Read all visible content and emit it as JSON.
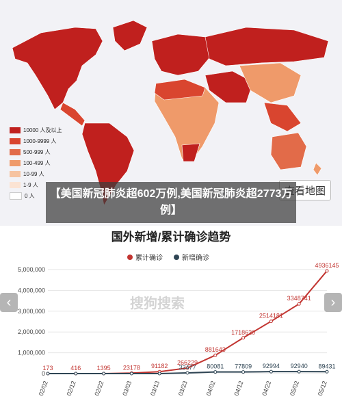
{
  "legend": [
    {
      "label": "10000 人及以上",
      "color": "#c0201e"
    },
    {
      "label": "1000-9999 人",
      "color": "#d9452f"
    },
    {
      "label": "500-999 人",
      "color": "#e26b49"
    },
    {
      "label": "100-499 人",
      "color": "#ef9a6a"
    },
    {
      "label": "10-99 人",
      "color": "#f6c3a0"
    },
    {
      "label": "1-9 人",
      "color": "#fbe3d3"
    },
    {
      "label": "0 人",
      "color": "#ffffff"
    }
  ],
  "switch_label": "查看地图",
  "caption": "【美国新冠肺炎超602万例,美国新冠肺炎超2773万例】",
  "watermark": "搜狗搜索",
  "chart_data": {
    "type": "line",
    "title": "国外新增/累计确诊趋势",
    "x": [
      "02/02",
      "02/12",
      "02/22",
      "03/03",
      "03/13",
      "03/23",
      "04/02",
      "04/12",
      "04/22",
      "05/02",
      "05/12"
    ],
    "yticks": [
      "0",
      "1,000,000",
      "2,000,000",
      "3,000,000",
      "4,000,000",
      "5,000,000"
    ],
    "ylim": [
      0,
      5000000
    ],
    "series": [
      {
        "name": "累计确诊",
        "color": "#c23531",
        "values": [
          173,
          416,
          1395,
          23178,
          91182,
          266229,
          881643,
          1718620,
          2514181,
          3348741,
          4936145
        ],
        "labels": [
          "173",
          "416",
          "1395",
          "23178",
          "91182",
          "266229",
          "881643",
          "1718620",
          "2514181",
          "3348741",
          "4936145"
        ]
      },
      {
        "name": "新增确诊",
        "color": "#2f4554",
        "values": [
          0,
          0,
          0,
          0,
          0,
          32477,
          80081,
          77809,
          92994,
          92940,
          89431
        ],
        "labels": [
          "",
          "",
          "",
          "",
          "",
          "32477",
          "80081",
          "77809",
          "92994",
          "92940",
          "89431"
        ]
      }
    ]
  }
}
